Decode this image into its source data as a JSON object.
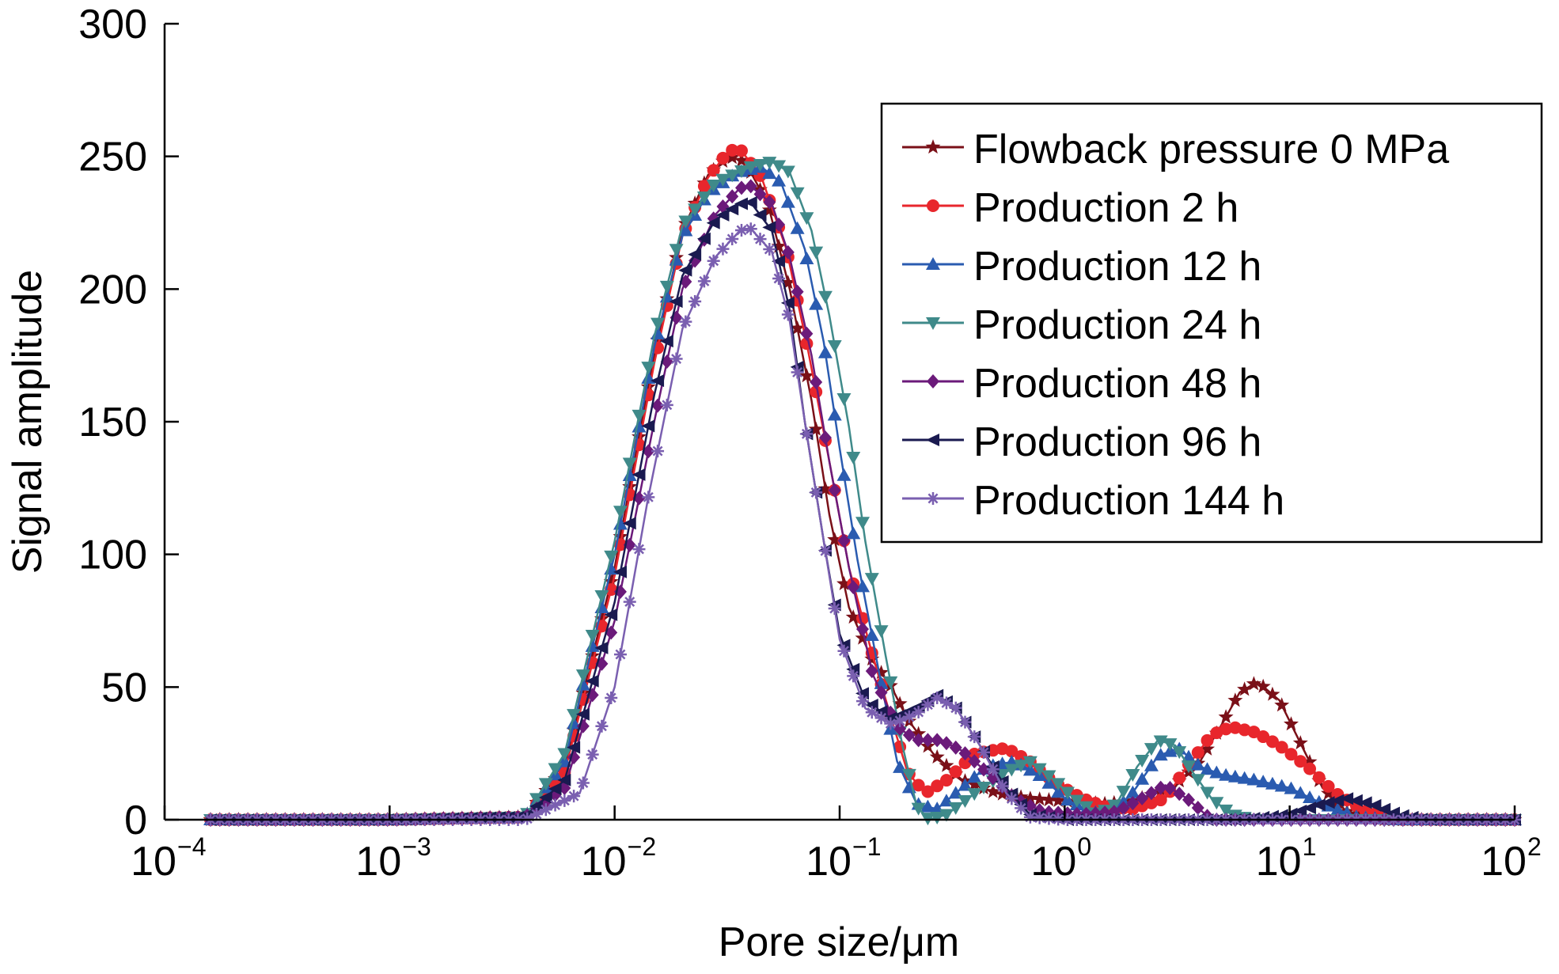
{
  "chart_data": {
    "type": "line",
    "xlabel": "Pore size/μm",
    "ylabel": "Signal amplitude",
    "xscale": "log",
    "xlim": [
      0.0001,
      100
    ],
    "ylim": [
      0,
      300
    ],
    "x_ticks": [
      {
        "base": "10",
        "exp": "−4"
      },
      {
        "base": "10",
        "exp": "−3"
      },
      {
        "base": "10",
        "exp": "−2"
      },
      {
        "base": "10",
        "exp": "−1"
      },
      {
        "base": "10",
        "exp": "0"
      },
      {
        "base": "10",
        "exp": "1"
      },
      {
        "base": "10",
        "exp": "2"
      }
    ],
    "y_ticks": [
      "0",
      "50",
      "100",
      "150",
      "200",
      "250",
      "300"
    ],
    "grid": false,
    "legend_position": "top-right",
    "series": [
      {
        "name": "Flowback pressure 0 MPa",
        "color": "#7a1018",
        "marker": "star",
        "points": [
          [
            0.00016,
            0
          ],
          [
            0.001,
            0
          ],
          [
            0.004,
            1
          ],
          [
            0.006,
            20
          ],
          [
            0.01,
            95
          ],
          [
            0.015,
            175
          ],
          [
            0.02,
            222
          ],
          [
            0.026,
            243
          ],
          [
            0.032,
            250
          ],
          [
            0.038,
            248
          ],
          [
            0.048,
            232
          ],
          [
            0.06,
            200
          ],
          [
            0.075,
            158
          ],
          [
            0.09,
            115
          ],
          [
            0.11,
            80
          ],
          [
            0.14,
            60
          ],
          [
            0.17,
            50
          ],
          [
            0.2,
            38
          ],
          [
            0.26,
            25
          ],
          [
            0.35,
            15
          ],
          [
            0.5,
            10
          ],
          [
            0.7,
            8
          ],
          [
            1.0,
            7
          ],
          [
            1.5,
            6
          ],
          [
            2.0,
            7
          ],
          [
            3.0,
            12
          ],
          [
            4.0,
            22
          ],
          [
            5.0,
            36
          ],
          [
            6.0,
            48
          ],
          [
            7.2,
            52
          ],
          [
            9.0,
            45
          ],
          [
            11.0,
            30
          ],
          [
            14.0,
            12
          ],
          [
            18.0,
            3
          ],
          [
            25.0,
            0
          ],
          [
            50.0,
            0
          ],
          [
            100,
            0
          ]
        ]
      },
      {
        "name": "Production 2 h",
        "color": "#e8262c",
        "marker": "circle",
        "points": [
          [
            0.00016,
            0
          ],
          [
            0.001,
            0
          ],
          [
            0.004,
            1
          ],
          [
            0.006,
            18
          ],
          [
            0.01,
            92
          ],
          [
            0.015,
            172
          ],
          [
            0.02,
            220
          ],
          [
            0.026,
            242
          ],
          [
            0.032,
            252
          ],
          [
            0.036,
            253
          ],
          [
            0.045,
            242
          ],
          [
            0.058,
            215
          ],
          [
            0.072,
            178
          ],
          [
            0.09,
            135
          ],
          [
            0.11,
            95
          ],
          [
            0.14,
            62
          ],
          [
            0.17,
            38
          ],
          [
            0.2,
            18
          ],
          [
            0.24,
            10
          ],
          [
            0.3,
            15
          ],
          [
            0.4,
            25
          ],
          [
            0.55,
            27
          ],
          [
            0.7,
            22
          ],
          [
            0.9,
            14
          ],
          [
            1.2,
            8
          ],
          [
            1.5,
            5
          ],
          [
            2.0,
            4
          ],
          [
            2.8,
            8
          ],
          [
            3.5,
            20
          ],
          [
            4.5,
            32
          ],
          [
            5.5,
            35
          ],
          [
            7.0,
            33
          ],
          [
            9.0,
            28
          ],
          [
            12.0,
            20
          ],
          [
            16.0,
            10
          ],
          [
            22.0,
            3
          ],
          [
            30.0,
            0
          ],
          [
            50.0,
            0
          ],
          [
            100,
            0
          ]
        ]
      },
      {
        "name": "Production 12 h",
        "color": "#2a5bb0",
        "marker": "triangle-up",
        "points": [
          [
            0.00016,
            0
          ],
          [
            0.001,
            0
          ],
          [
            0.004,
            1
          ],
          [
            0.006,
            22
          ],
          [
            0.01,
            100
          ],
          [
            0.015,
            178
          ],
          [
            0.02,
            220
          ],
          [
            0.026,
            236
          ],
          [
            0.035,
            244
          ],
          [
            0.045,
            246
          ],
          [
            0.055,
            240
          ],
          [
            0.07,
            215
          ],
          [
            0.085,
            180
          ],
          [
            0.1,
            140
          ],
          [
            0.12,
            98
          ],
          [
            0.15,
            55
          ],
          [
            0.18,
            22
          ],
          [
            0.22,
            6
          ],
          [
            0.27,
            4
          ],
          [
            0.35,
            12
          ],
          [
            0.45,
            20
          ],
          [
            0.6,
            22
          ],
          [
            0.8,
            16
          ],
          [
            1.0,
            8
          ],
          [
            1.3,
            3
          ],
          [
            1.6,
            2
          ],
          [
            2.0,
            10
          ],
          [
            2.6,
            24
          ],
          [
            3.2,
            27
          ],
          [
            4.0,
            20
          ],
          [
            5.0,
            17
          ],
          [
            7.0,
            15
          ],
          [
            10.0,
            12
          ],
          [
            14.0,
            6
          ],
          [
            20.0,
            1
          ],
          [
            30.0,
            0
          ],
          [
            50.0,
            0
          ],
          [
            100,
            0
          ]
        ]
      },
      {
        "name": "Production 24 h",
        "color": "#3f8a8a",
        "marker": "triangle-down",
        "points": [
          [
            0.00016,
            0
          ],
          [
            0.001,
            0
          ],
          [
            0.004,
            1
          ],
          [
            0.006,
            25
          ],
          [
            0.01,
            105
          ],
          [
            0.015,
            182
          ],
          [
            0.02,
            224
          ],
          [
            0.028,
            240
          ],
          [
            0.04,
            246
          ],
          [
            0.05,
            248
          ],
          [
            0.06,
            244
          ],
          [
            0.075,
            222
          ],
          [
            0.09,
            190
          ],
          [
            0.11,
            148
          ],
          [
            0.13,
            105
          ],
          [
            0.16,
            62
          ],
          [
            0.19,
            28
          ],
          [
            0.22,
            5
          ],
          [
            0.25,
            0
          ],
          [
            0.3,
            2
          ],
          [
            0.4,
            10
          ],
          [
            0.55,
            18
          ],
          [
            0.7,
            22
          ],
          [
            0.9,
            15
          ],
          [
            1.1,
            8
          ],
          [
            1.4,
            2
          ],
          [
            1.7,
            6
          ],
          [
            2.1,
            20
          ],
          [
            2.6,
            30
          ],
          [
            3.1,
            28
          ],
          [
            3.7,
            18
          ],
          [
            4.5,
            8
          ],
          [
            5.5,
            2
          ],
          [
            7.0,
            0
          ],
          [
            10.0,
            0
          ],
          [
            50.0,
            0
          ],
          [
            100,
            0
          ]
        ]
      },
      {
        "name": "Production 48 h",
        "color": "#6b1a7a",
        "marker": "diamond",
        "points": [
          [
            0.00016,
            0
          ],
          [
            0.001,
            0
          ],
          [
            0.004,
            1
          ],
          [
            0.006,
            12
          ],
          [
            0.01,
            75
          ],
          [
            0.015,
            150
          ],
          [
            0.02,
            200
          ],
          [
            0.028,
            228
          ],
          [
            0.036,
            238
          ],
          [
            0.04,
            239
          ],
          [
            0.05,
            232
          ],
          [
            0.06,
            212
          ],
          [
            0.075,
            175
          ],
          [
            0.09,
            135
          ],
          [
            0.11,
            95
          ],
          [
            0.14,
            55
          ],
          [
            0.18,
            35
          ],
          [
            0.22,
            30
          ],
          [
            0.28,
            30
          ],
          [
            0.35,
            26
          ],
          [
            0.45,
            18
          ],
          [
            0.6,
            8
          ],
          [
            0.8,
            3
          ],
          [
            1.2,
            2
          ],
          [
            1.7,
            3
          ],
          [
            2.2,
            8
          ],
          [
            2.8,
            13
          ],
          [
            3.5,
            8
          ],
          [
            4.5,
            0
          ],
          [
            6.0,
            0
          ],
          [
            10.0,
            0
          ],
          [
            50.0,
            0
          ],
          [
            100,
            0
          ]
        ]
      },
      {
        "name": "Production 96 h",
        "color": "#1a1a50",
        "marker": "triangle-left",
        "points": [
          [
            0.00016,
            0
          ],
          [
            0.001,
            0
          ],
          [
            0.004,
            1
          ],
          [
            0.006,
            15
          ],
          [
            0.01,
            82
          ],
          [
            0.015,
            160
          ],
          [
            0.02,
            205
          ],
          [
            0.028,
            226
          ],
          [
            0.036,
            232
          ],
          [
            0.04,
            233
          ],
          [
            0.05,
            222
          ],
          [
            0.06,
            192
          ],
          [
            0.07,
            150
          ],
          [
            0.085,
            105
          ],
          [
            0.1,
            70
          ],
          [
            0.13,
            45
          ],
          [
            0.17,
            38
          ],
          [
            0.22,
            42
          ],
          [
            0.27,
            47
          ],
          [
            0.33,
            42
          ],
          [
            0.42,
            28
          ],
          [
            0.55,
            12
          ],
          [
            0.7,
            2
          ],
          [
            1.0,
            0
          ],
          [
            3.0,
            0
          ],
          [
            6.0,
            0
          ],
          [
            10.0,
            2
          ],
          [
            14.0,
            6
          ],
          [
            18.0,
            8
          ],
          [
            23.0,
            6
          ],
          [
            30.0,
            2
          ],
          [
            40.0,
            0
          ],
          [
            100,
            0
          ]
        ]
      },
      {
        "name": "Production 144 h",
        "color": "#7a5fb0",
        "marker": "asterisk",
        "points": [
          [
            0.00016,
            0
          ],
          [
            0.001,
            0
          ],
          [
            0.004,
            0
          ],
          [
            0.007,
            10
          ],
          [
            0.01,
            50
          ],
          [
            0.014,
            120
          ],
          [
            0.02,
            185
          ],
          [
            0.028,
            212
          ],
          [
            0.036,
            222
          ],
          [
            0.04,
            223
          ],
          [
            0.05,
            214
          ],
          [
            0.06,
            188
          ],
          [
            0.07,
            150
          ],
          [
            0.085,
            105
          ],
          [
            0.1,
            68
          ],
          [
            0.13,
            42
          ],
          [
            0.17,
            36
          ],
          [
            0.22,
            40
          ],
          [
            0.27,
            46
          ],
          [
            0.33,
            42
          ],
          [
            0.42,
            28
          ],
          [
            0.55,
            10
          ],
          [
            0.7,
            1
          ],
          [
            1.0,
            0
          ],
          [
            10.0,
            0
          ],
          [
            100,
            0
          ]
        ]
      }
    ]
  }
}
